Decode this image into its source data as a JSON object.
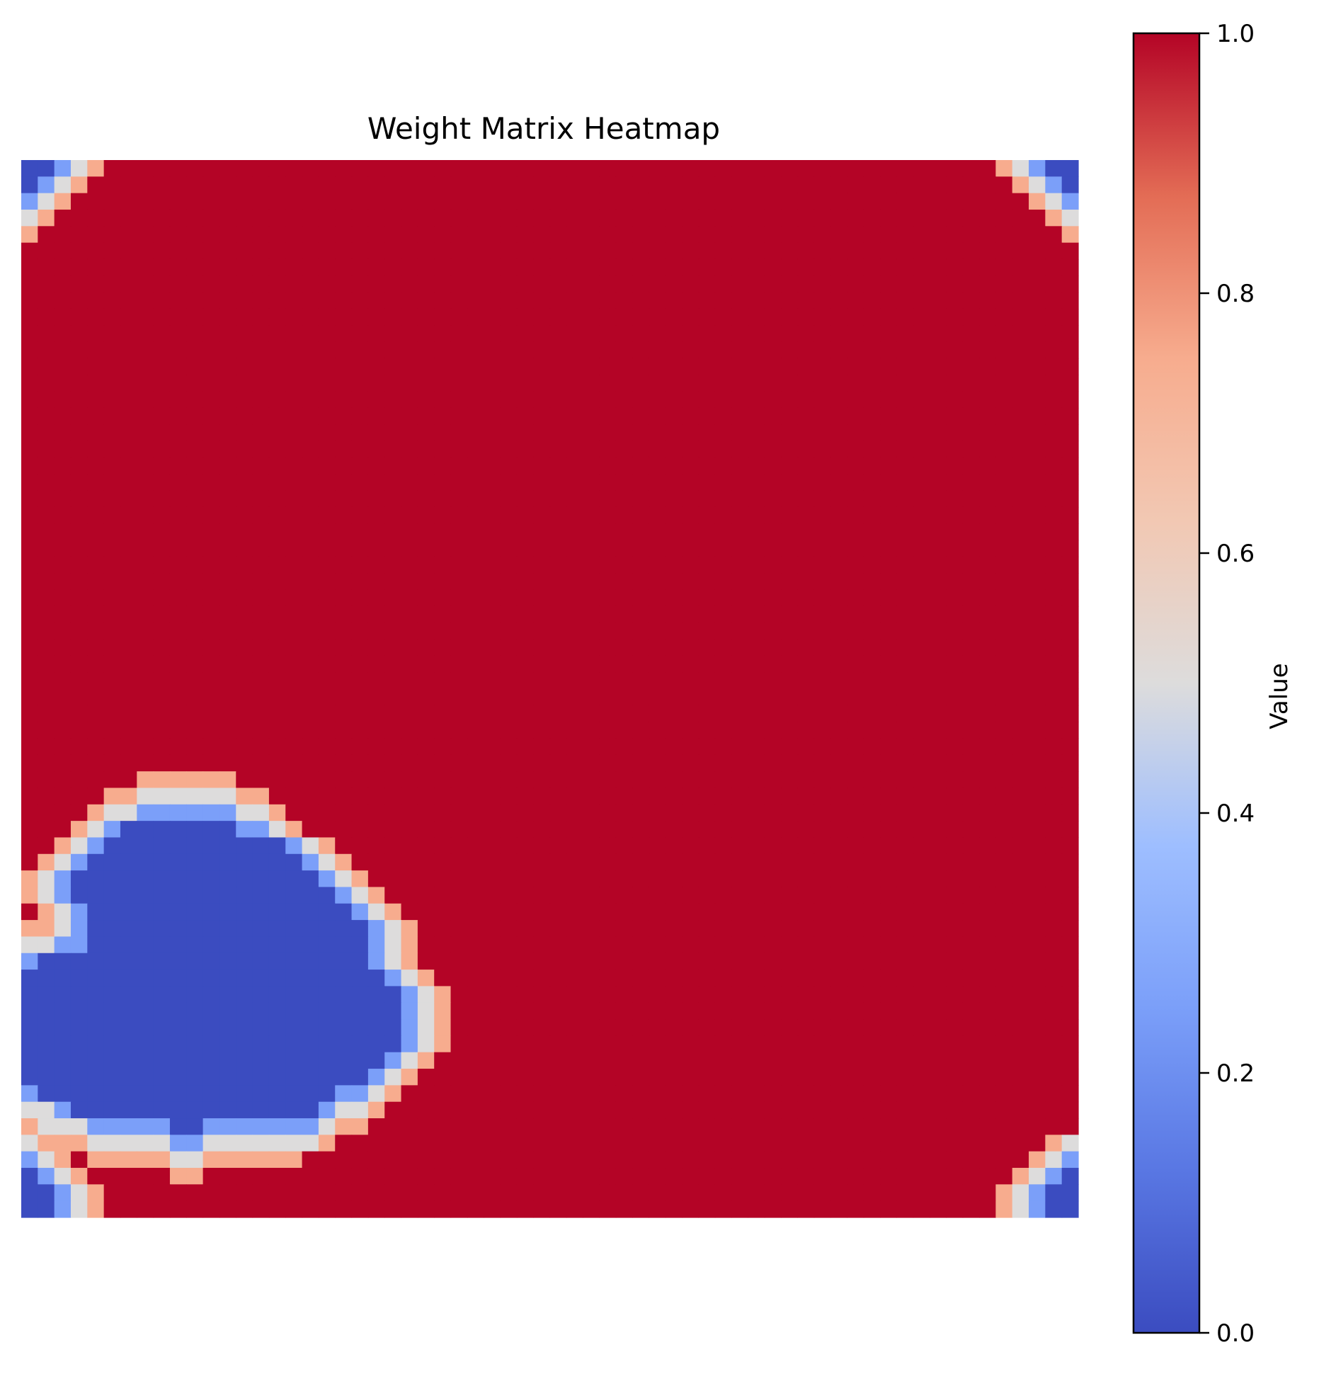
{
  "chart_data": {
    "type": "heatmap",
    "title": "Weight Matrix Heatmap",
    "rows": 64,
    "cols": 64,
    "colormap": "coolwarm",
    "vmin": 0.0,
    "vmax": 1.0,
    "default_value": 1.0,
    "axes_visible": false,
    "colorbar": {
      "label": "Value",
      "ticks": [
        "0.0",
        "0.2",
        "0.4",
        "0.6",
        "0.8",
        "1.0"
      ]
    },
    "value_levels": {
      "blue": 0.0,
      "light_blue": 0.25,
      "white": 0.5,
      "salmon": 0.75,
      "red": 1.0
    },
    "overrides": [
      [
        0,
        [
          [
            0,
            1,
            0.0
          ],
          [
            2,
            2,
            0.25
          ],
          [
            3,
            3,
            0.5
          ],
          [
            4,
            4,
            0.75
          ],
          [
            59,
            59,
            0.75
          ],
          [
            60,
            60,
            0.5
          ],
          [
            61,
            61,
            0.25
          ],
          [
            62,
            63,
            0.0
          ]
        ]
      ],
      [
        1,
        [
          [
            0,
            0,
            0.0
          ],
          [
            1,
            1,
            0.25
          ],
          [
            2,
            2,
            0.5
          ],
          [
            3,
            3,
            0.75
          ],
          [
            60,
            60,
            0.75
          ],
          [
            61,
            61,
            0.5
          ],
          [
            62,
            62,
            0.25
          ],
          [
            63,
            63,
            0.0
          ]
        ]
      ],
      [
        2,
        [
          [
            0,
            0,
            0.25
          ],
          [
            1,
            1,
            0.5
          ],
          [
            2,
            2,
            0.75
          ],
          [
            61,
            61,
            0.75
          ],
          [
            62,
            62,
            0.5
          ],
          [
            63,
            63,
            0.25
          ]
        ]
      ],
      [
        3,
        [
          [
            0,
            0,
            0.5
          ],
          [
            1,
            1,
            0.75
          ],
          [
            62,
            62,
            0.75
          ],
          [
            63,
            63,
            0.5
          ]
        ]
      ],
      [
        4,
        [
          [
            0,
            0,
            0.75
          ],
          [
            63,
            63,
            0.75
          ]
        ]
      ],
      [
        37,
        [
          [
            7,
            12,
            0.75
          ]
        ]
      ],
      [
        38,
        [
          [
            5,
            6,
            0.75
          ],
          [
            7,
            12,
            0.5
          ],
          [
            13,
            14,
            0.75
          ]
        ]
      ],
      [
        39,
        [
          [
            4,
            4,
            0.75
          ],
          [
            5,
            6,
            0.5
          ],
          [
            7,
            12,
            0.25
          ],
          [
            13,
            14,
            0.5
          ],
          [
            15,
            15,
            0.75
          ]
        ]
      ],
      [
        40,
        [
          [
            3,
            3,
            0.75
          ],
          [
            4,
            4,
            0.5
          ],
          [
            5,
            5,
            0.25
          ],
          [
            6,
            12,
            0.0
          ],
          [
            13,
            14,
            0.25
          ],
          [
            15,
            15,
            0.5
          ],
          [
            16,
            16,
            0.75
          ]
        ]
      ],
      [
        41,
        [
          [
            2,
            2,
            0.75
          ],
          [
            3,
            3,
            0.5
          ],
          [
            4,
            4,
            0.25
          ],
          [
            5,
            15,
            0.0
          ],
          [
            16,
            16,
            0.25
          ],
          [
            17,
            17,
            0.5
          ],
          [
            18,
            18,
            0.75
          ]
        ]
      ],
      [
        42,
        [
          [
            1,
            1,
            0.75
          ],
          [
            2,
            2,
            0.5
          ],
          [
            3,
            3,
            0.25
          ],
          [
            4,
            16,
            0.0
          ],
          [
            17,
            17,
            0.25
          ],
          [
            18,
            18,
            0.5
          ],
          [
            19,
            19,
            0.75
          ]
        ]
      ],
      [
        43,
        [
          [
            0,
            0,
            0.75
          ],
          [
            1,
            1,
            0.5
          ],
          [
            2,
            2,
            0.25
          ],
          [
            3,
            17,
            0.0
          ],
          [
            18,
            18,
            0.25
          ],
          [
            19,
            19,
            0.5
          ],
          [
            20,
            20,
            0.75
          ]
        ]
      ],
      [
        44,
        [
          [
            0,
            0,
            0.75
          ],
          [
            1,
            1,
            0.5
          ],
          [
            2,
            2,
            0.25
          ],
          [
            3,
            18,
            0.0
          ],
          [
            19,
            19,
            0.25
          ],
          [
            20,
            20,
            0.5
          ],
          [
            21,
            21,
            0.75
          ]
        ]
      ],
      [
        45,
        [
          [
            1,
            1,
            0.75
          ],
          [
            2,
            2,
            0.5
          ],
          [
            3,
            3,
            0.25
          ],
          [
            4,
            19,
            0.0
          ],
          [
            20,
            20,
            0.25
          ],
          [
            21,
            21,
            0.5
          ],
          [
            22,
            22,
            0.75
          ]
        ]
      ],
      [
        46,
        [
          [
            0,
            1,
            0.75
          ],
          [
            2,
            2,
            0.5
          ],
          [
            3,
            3,
            0.25
          ],
          [
            4,
            20,
            0.0
          ],
          [
            21,
            21,
            0.25
          ],
          [
            22,
            22,
            0.5
          ],
          [
            23,
            23,
            0.75
          ]
        ]
      ],
      [
        47,
        [
          [
            0,
            1,
            0.5
          ],
          [
            2,
            3,
            0.25
          ],
          [
            4,
            20,
            0.0
          ],
          [
            21,
            21,
            0.25
          ],
          [
            22,
            22,
            0.5
          ],
          [
            23,
            23,
            0.75
          ]
        ]
      ],
      [
        48,
        [
          [
            0,
            0,
            0.25
          ],
          [
            1,
            20,
            0.0
          ],
          [
            21,
            21,
            0.25
          ],
          [
            22,
            22,
            0.5
          ],
          [
            23,
            23,
            0.75
          ]
        ]
      ],
      [
        49,
        [
          [
            0,
            21,
            0.0
          ],
          [
            22,
            22,
            0.25
          ],
          [
            23,
            23,
            0.5
          ],
          [
            24,
            24,
            0.75
          ]
        ]
      ],
      [
        50,
        [
          [
            0,
            22,
            0.0
          ],
          [
            23,
            23,
            0.25
          ],
          [
            24,
            24,
            0.5
          ],
          [
            25,
            25,
            0.75
          ]
        ]
      ],
      [
        51,
        [
          [
            0,
            22,
            0.0
          ],
          [
            23,
            23,
            0.25
          ],
          [
            24,
            24,
            0.5
          ],
          [
            25,
            25,
            0.75
          ]
        ]
      ],
      [
        52,
        [
          [
            0,
            22,
            0.0
          ],
          [
            23,
            23,
            0.25
          ],
          [
            24,
            24,
            0.5
          ],
          [
            25,
            25,
            0.75
          ]
        ]
      ],
      [
        53,
        [
          [
            0,
            22,
            0.0
          ],
          [
            23,
            23,
            0.25
          ],
          [
            24,
            24,
            0.5
          ],
          [
            25,
            25,
            0.75
          ]
        ]
      ],
      [
        54,
        [
          [
            0,
            21,
            0.0
          ],
          [
            22,
            22,
            0.25
          ],
          [
            23,
            23,
            0.5
          ],
          [
            24,
            24,
            0.75
          ]
        ]
      ],
      [
        55,
        [
          [
            0,
            20,
            0.0
          ],
          [
            21,
            21,
            0.25
          ],
          [
            22,
            22,
            0.5
          ],
          [
            23,
            23,
            0.75
          ]
        ]
      ],
      [
        56,
        [
          [
            0,
            0,
            0.25
          ],
          [
            1,
            18,
            0.0
          ],
          [
            19,
            20,
            0.25
          ],
          [
            21,
            21,
            0.5
          ],
          [
            22,
            22,
            0.75
          ]
        ]
      ],
      [
        57,
        [
          [
            0,
            1,
            0.5
          ],
          [
            2,
            2,
            0.25
          ],
          [
            3,
            17,
            0.0
          ],
          [
            18,
            18,
            0.25
          ],
          [
            19,
            20,
            0.5
          ],
          [
            21,
            21,
            0.75
          ]
        ]
      ],
      [
        58,
        [
          [
            0,
            0,
            0.75
          ],
          [
            1,
            1,
            0.5
          ],
          [
            2,
            3,
            0.5
          ],
          [
            4,
            8,
            0.25
          ],
          [
            9,
            10,
            0.0
          ],
          [
            11,
            17,
            0.25
          ],
          [
            18,
            18,
            0.5
          ],
          [
            19,
            20,
            0.75
          ]
        ]
      ],
      [
        59,
        [
          [
            0,
            0,
            0.5
          ],
          [
            1,
            3,
            0.75
          ],
          [
            4,
            8,
            0.5
          ],
          [
            9,
            10,
            0.25
          ],
          [
            11,
            17,
            0.5
          ],
          [
            18,
            18,
            0.75
          ],
          [
            62,
            62,
            0.75
          ],
          [
            63,
            63,
            0.5
          ]
        ]
      ],
      [
        60,
        [
          [
            0,
            0,
            0.25
          ],
          [
            1,
            1,
            0.5
          ],
          [
            2,
            2,
            0.75
          ],
          [
            4,
            8,
            0.75
          ],
          [
            9,
            10,
            0.5
          ],
          [
            11,
            16,
            0.75
          ],
          [
            61,
            61,
            0.75
          ],
          [
            62,
            62,
            0.5
          ],
          [
            63,
            63,
            0.25
          ]
        ]
      ],
      [
        61,
        [
          [
            0,
            0,
            0.0
          ],
          [
            1,
            1,
            0.25
          ],
          [
            2,
            2,
            0.5
          ],
          [
            3,
            3,
            0.75
          ],
          [
            9,
            10,
            0.75
          ],
          [
            60,
            60,
            0.75
          ],
          [
            61,
            61,
            0.5
          ],
          [
            62,
            62,
            0.25
          ],
          [
            63,
            63,
            0.0
          ]
        ]
      ],
      [
        62,
        [
          [
            0,
            0,
            0.0
          ],
          [
            1,
            1,
            0.0
          ],
          [
            2,
            2,
            0.25
          ],
          [
            3,
            3,
            0.5
          ],
          [
            4,
            4,
            0.75
          ],
          [
            59,
            59,
            0.75
          ],
          [
            60,
            60,
            0.5
          ],
          [
            61,
            61,
            0.25
          ],
          [
            62,
            63,
            0.0
          ]
        ]
      ],
      [
        63,
        [
          [
            0,
            1,
            0.0
          ],
          [
            2,
            2,
            0.25
          ],
          [
            3,
            3,
            0.5
          ],
          [
            4,
            4,
            0.75
          ],
          [
            59,
            59,
            0.75
          ],
          [
            60,
            60,
            0.5
          ],
          [
            61,
            61,
            0.25
          ],
          [
            62,
            63,
            0.0
          ]
        ]
      ]
    ]
  }
}
